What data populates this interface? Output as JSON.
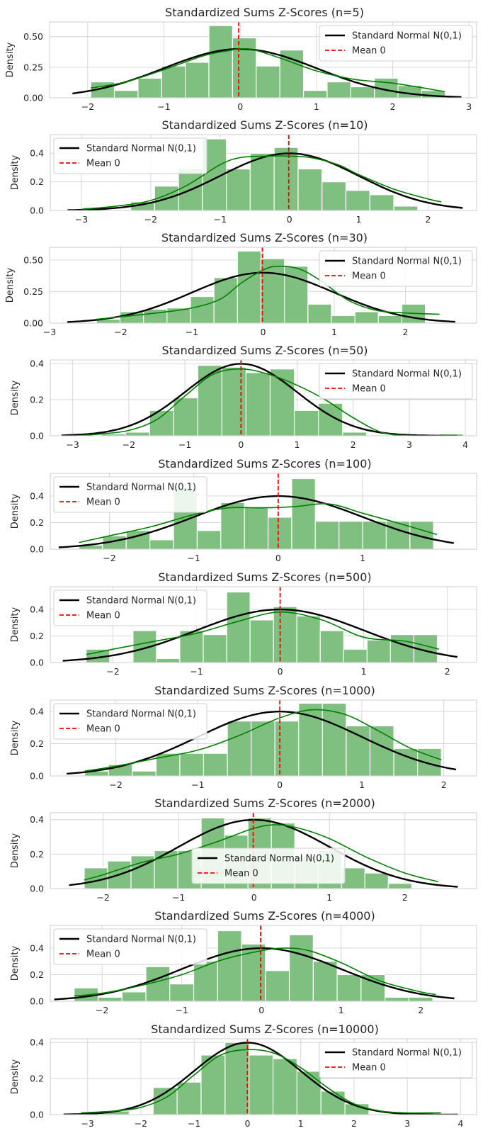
{
  "colors": {
    "bars": "#7fbf7f",
    "kde": "#008000",
    "normal": "#000000",
    "mean": "#ff0000",
    "grid": "#d6d6d6",
    "frame": "#cccccc"
  },
  "chart_data": [
    {
      "type": "bar",
      "title": "Standardized Sums Z-Scores (n=5)",
      "ylabel": "Density",
      "xlim": [
        -2.5,
        3.1
      ],
      "ylim": [
        0,
        0.62
      ],
      "xticks": [
        -2,
        -1,
        0,
        1,
        2,
        3
      ],
      "yticks": [
        0,
        0.25,
        0.5
      ],
      "ytick_labels": [
        "0.00",
        "0.25",
        "0.50"
      ],
      "bin_start": -1.96,
      "bin_width": 0.31,
      "values": [
        0.13,
        0.06,
        0.16,
        0.26,
        0.29,
        0.59,
        0.49,
        0.26,
        0.39,
        0.06,
        0.13,
        0.09,
        0.16,
        0.1,
        0.06
      ],
      "kde_x": [
        -1.96,
        -1.5,
        -1.0,
        -0.5,
        -0.2,
        0.1,
        0.5,
        1.0,
        1.5,
        2.0,
        2.5,
        2.68
      ],
      "kde_y": [
        0.08,
        0.13,
        0.23,
        0.34,
        0.38,
        0.4,
        0.33,
        0.22,
        0.15,
        0.12,
        0.07,
        0.05
      ],
      "normal_range": [
        -2.2,
        2.9
      ],
      "mean_line": -0.02,
      "legend_position": "upper right",
      "legend": [
        "Standard Normal N(0,1)",
        "Mean 0"
      ]
    },
    {
      "type": "bar",
      "title": "Standardized Sums Z-Scores (n=10)",
      "ylabel": "Density",
      "xlim": [
        -3.45,
        2.7
      ],
      "ylim": [
        0,
        0.53
      ],
      "xticks": [
        -3,
        -2,
        -1,
        0,
        1,
        2
      ],
      "yticks": [
        0,
        0.2,
        0.4
      ],
      "ytick_labels": [
        "0.0",
        "0.2",
        "0.4"
      ],
      "bin_start": -2.98,
      "bin_width": 0.345,
      "values": [
        0.02,
        0.0,
        0.06,
        0.17,
        0.29,
        0.5,
        0.29,
        0.4,
        0.44,
        0.29,
        0.2,
        0.14,
        0.11,
        0.03
      ],
      "kde_x": [
        -2.98,
        -2.5,
        -2.0,
        -1.5,
        -1.0,
        -0.7,
        -0.3,
        0.0,
        0.3,
        0.7,
        1.0,
        1.5,
        2.0,
        2.19
      ],
      "kde_y": [
        0.01,
        0.03,
        0.07,
        0.17,
        0.32,
        0.37,
        0.38,
        0.38,
        0.37,
        0.32,
        0.25,
        0.15,
        0.08,
        0.06
      ],
      "normal_range": [
        -3.2,
        2.5
      ],
      "mean_line": -0.01,
      "legend_position": "upper left",
      "legend": [
        "Standard Normal N(0,1)",
        "Mean 0"
      ]
    },
    {
      "type": "bar",
      "title": "Standardized Sums Z-Scores (n=30)",
      "ylabel": "Density",
      "xlim": [
        -3.0,
        3.0
      ],
      "ylim": [
        0,
        0.6
      ],
      "xticks": [
        -3,
        -2,
        -1,
        0,
        1,
        2
      ],
      "yticks": [
        0,
        0.25,
        0.5
      ],
      "ytick_labels": [
        "0.00",
        "0.25",
        "0.50"
      ],
      "bin_start": -2.34,
      "bin_width": 0.33,
      "values": [
        0.03,
        0.09,
        0.11,
        0.12,
        0.21,
        0.36,
        0.57,
        0.51,
        0.45,
        0.15,
        0.06,
        0.09,
        0.06,
        0.15
      ],
      "kde_x": [
        -2.34,
        -2.0,
        -1.5,
        -1.0,
        -0.6,
        -0.3,
        0.0,
        0.2,
        0.5,
        0.8,
        1.2,
        1.6,
        2.0,
        2.48
      ],
      "kde_y": [
        0.03,
        0.05,
        0.08,
        0.12,
        0.19,
        0.32,
        0.42,
        0.45,
        0.43,
        0.34,
        0.18,
        0.1,
        0.08,
        0.07
      ],
      "normal_range": [
        -2.75,
        2.7
      ],
      "mean_line": -0.01,
      "legend_position": "upper right",
      "legend": [
        "Standard Normal N(0,1)",
        "Mean 0"
      ]
    },
    {
      "type": "bar",
      "title": "Standardized Sums Z-Scores (n=50)",
      "ylabel": "Density",
      "xlim": [
        -3.4,
        4.2
      ],
      "ylim": [
        0,
        0.42
      ],
      "xticks": [
        -3,
        -2,
        -1,
        0,
        1,
        2,
        3,
        4
      ],
      "yticks": [
        0,
        0.2,
        0.4
      ],
      "ytick_labels": [
        "0.0",
        "0.2",
        "0.4"
      ],
      "bin_start": -2.92,
      "bin_width": 0.43,
      "values": [
        0.0,
        0.01,
        0.02,
        0.14,
        0.21,
        0.39,
        0.38,
        0.35,
        0.37,
        0.14,
        0.18,
        0.02,
        0.0,
        0.0,
        0.0,
        0.01
      ],
      "kde_x": [
        -2.92,
        -2.5,
        -2.0,
        -1.5,
        -1.0,
        -0.5,
        0.0,
        0.5,
        1.0,
        1.5,
        2.0,
        2.5,
        3.0,
        3.5,
        3.96
      ],
      "kde_y": [
        0.0,
        0.01,
        0.03,
        0.09,
        0.22,
        0.34,
        0.37,
        0.34,
        0.28,
        0.2,
        0.1,
        0.02,
        0.0,
        0.0,
        0.0
      ],
      "normal_range": [
        -3.2,
        3.85
      ],
      "mean_line": 0.0,
      "legend_position": "upper right",
      "legend": [
        "Standard Normal N(0,1)",
        "Mean 0"
      ]
    },
    {
      "type": "bar",
      "title": "Standardized Sums Z-Scores (n=100)",
      "ylabel": "Density",
      "xlim": [
        -2.7,
        2.35
      ],
      "ylim": [
        0,
        0.57
      ],
      "xticks": [
        -2,
        -1,
        0,
        1
      ],
      "yticks": [
        0,
        0.2,
        0.4
      ],
      "ytick_labels": [
        "0.0",
        "0.2",
        "0.4"
      ],
      "bin_start": -2.36,
      "bin_width": 0.28,
      "values": [
        0.03,
        0.1,
        0.14,
        0.07,
        0.46,
        0.14,
        0.35,
        0.32,
        0.24,
        0.53,
        0.21,
        0.21,
        0.21,
        0.21,
        0.21
      ],
      "kde_x": [
        -2.36,
        -2.0,
        -1.5,
        -1.0,
        -0.6,
        -0.2,
        0.2,
        0.6,
        1.0,
        1.4,
        1.88
      ],
      "kde_y": [
        0.05,
        0.1,
        0.17,
        0.26,
        0.31,
        0.31,
        0.32,
        0.34,
        0.27,
        0.2,
        0.11
      ],
      "normal_range": [
        -2.6,
        2.08
      ],
      "mean_line": 0.0,
      "legend_position": "upper left",
      "legend": [
        "Standard Normal N(0,1)",
        "Mean 0"
      ]
    },
    {
      "type": "bar",
      "title": "Standardized Sums Z-Scores (n=500)",
      "ylabel": "Density",
      "xlim": [
        -2.75,
        2.35
      ],
      "ylim": [
        0,
        0.57
      ],
      "xticks": [
        -2,
        -1,
        0,
        1,
        2
      ],
      "yticks": [
        0,
        0.2,
        0.4
      ],
      "ytick_labels": [
        "0.0",
        "0.2",
        "0.4"
      ],
      "bin_start": -2.32,
      "bin_width": 0.28,
      "values": [
        0.1,
        0.0,
        0.24,
        0.03,
        0.24,
        0.21,
        0.53,
        0.32,
        0.42,
        0.35,
        0.24,
        0.1,
        0.17,
        0.21,
        0.21
      ],
      "kde_x": [
        -2.32,
        -2.0,
        -1.5,
        -1.0,
        -0.5,
        0.0,
        0.5,
        1.0,
        1.5,
        1.9
      ],
      "kde_y": [
        0.06,
        0.1,
        0.16,
        0.22,
        0.31,
        0.38,
        0.32,
        0.19,
        0.16,
        0.1
      ],
      "normal_range": [
        -2.6,
        2.12
      ],
      "mean_line": 0.0,
      "legend_position": "upper left",
      "legend": [
        "Standard Normal N(0,1)",
        "Mean 0"
      ]
    },
    {
      "type": "bar",
      "title": "Standardized Sums Z-Scores (n=1000)",
      "ylabel": "Density",
      "xlim": [
        -2.8,
        2.4
      ],
      "ylim": [
        0,
        0.47
      ],
      "xticks": [
        -2,
        -1,
        0,
        1,
        2
      ],
      "yticks": [
        0,
        0.2,
        0.4
      ],
      "ytick_labels": [
        "0.0",
        "0.2",
        "0.4"
      ],
      "bin_start": -2.38,
      "bin_width": 0.29,
      "values": [
        0.03,
        0.07,
        0.03,
        0.14,
        0.14,
        0.14,
        0.34,
        0.34,
        0.34,
        0.45,
        0.45,
        0.31,
        0.31,
        0.17,
        0.17
      ],
      "kde_x": [
        -2.38,
        -2.0,
        -1.5,
        -1.0,
        -0.5,
        0.0,
        0.4,
        0.8,
        1.2,
        1.6,
        1.97
      ],
      "kde_y": [
        0.03,
        0.06,
        0.11,
        0.16,
        0.25,
        0.36,
        0.41,
        0.38,
        0.28,
        0.17,
        0.1
      ],
      "normal_range": [
        -2.6,
        2.15
      ],
      "mean_line": 0.0,
      "legend_position": "upper left",
      "legend": [
        "Standard Normal N(0,1)",
        "Mean 0"
      ]
    },
    {
      "type": "bar",
      "title": "Standardized Sums Z-Scores (n=2000)",
      "ylabel": "Density",
      "xlim": [
        -2.7,
        2.95
      ],
      "ylim": [
        0,
        0.44
      ],
      "xticks": [
        -2,
        -1,
        0,
        1,
        2
      ],
      "yticks": [
        0,
        0.2,
        0.4
      ],
      "ytick_labels": [
        "0.0",
        "0.2",
        "0.4"
      ],
      "bin_start": -2.25,
      "bin_width": 0.31,
      "values": [
        0.12,
        0.16,
        0.19,
        0.22,
        0.22,
        0.41,
        0.31,
        0.41,
        0.38,
        0.19,
        0.22,
        0.12,
        0.09,
        0.03,
        0.0
      ],
      "kde_x": [
        -2.25,
        -2.0,
        -1.5,
        -1.0,
        -0.5,
        0.0,
        0.3,
        0.6,
        1.0,
        1.5,
        2.0,
        2.44
      ],
      "kde_y": [
        0.05,
        0.08,
        0.15,
        0.2,
        0.27,
        0.35,
        0.37,
        0.35,
        0.29,
        0.18,
        0.09,
        0.04
      ],
      "normal_range": [
        -2.45,
        2.7
      ],
      "mean_line": -0.01,
      "legend_position": "center",
      "legend": [
        "Standard Normal N(0,1)",
        "Mean 0"
      ]
    },
    {
      "type": "bar",
      "title": "Standardized Sums Z-Scores (n=4000)",
      "ylabel": "Density",
      "xlim": [
        -2.65,
        2.7
      ],
      "ylim": [
        0,
        0.57
      ],
      "xticks": [
        -2,
        -1,
        0,
        1,
        2
      ],
      "yticks": [
        0,
        0.2,
        0.4
      ],
      "ytick_labels": [
        "0.0",
        "0.2",
        "0.4"
      ],
      "bin_start": -2.35,
      "bin_width": 0.3,
      "values": [
        0.1,
        0.03,
        0.07,
        0.26,
        0.13,
        0.3,
        0.53,
        0.43,
        0.23,
        0.5,
        0.3,
        0.2,
        0.2,
        0.03,
        0.03
      ],
      "kde_x": [
        -2.35,
        -2.0,
        -1.5,
        -1.0,
        -0.5,
        0.0,
        0.3,
        0.6,
        1.0,
        1.5,
        2.0,
        2.19
      ],
      "kde_y": [
        0.04,
        0.06,
        0.12,
        0.2,
        0.31,
        0.38,
        0.4,
        0.38,
        0.29,
        0.15,
        0.07,
        0.05
      ],
      "normal_range": [
        -2.6,
        2.42
      ],
      "mean_line": -0.01,
      "legend_position": "upper left",
      "legend": [
        "Standard Normal N(0,1)",
        "Mean 0"
      ]
    },
    {
      "type": "bar",
      "title": "Standardized Sums Z-Scores (n=10000)",
      "ylabel": "Density",
      "xlim": [
        -3.7,
        4.3
      ],
      "ylim": [
        0,
        0.42
      ],
      "xticks": [
        -3,
        -2,
        -1,
        0,
        1,
        2,
        3,
        4
      ],
      "yticks": [
        0,
        0.2,
        0.4
      ],
      "ytick_labels": [
        "0.0",
        "0.2",
        "0.4"
      ],
      "bin_start": -3.12,
      "bin_width": 0.45,
      "values": [
        0.01,
        0.02,
        0.0,
        0.15,
        0.18,
        0.33,
        0.4,
        0.33,
        0.31,
        0.24,
        0.13,
        0.06,
        0.0,
        0.0,
        0.0,
        0.0
      ],
      "kde_x": [
        -3.12,
        -2.5,
        -2.0,
        -1.5,
        -1.0,
        -0.5,
        0.0,
        0.5,
        1.0,
        1.5,
        2.0,
        2.5,
        3.0,
        3.5,
        3.63
      ],
      "kde_y": [
        0.01,
        0.02,
        0.04,
        0.1,
        0.22,
        0.33,
        0.36,
        0.34,
        0.26,
        0.15,
        0.06,
        0.02,
        0.01,
        0.01,
        0.01
      ],
      "normal_range": [
        -3.45,
        3.95
      ],
      "mean_line": 0.0,
      "legend_position": "upper right",
      "legend": [
        "Standard Normal N(0,1)",
        "Mean 0"
      ]
    }
  ]
}
